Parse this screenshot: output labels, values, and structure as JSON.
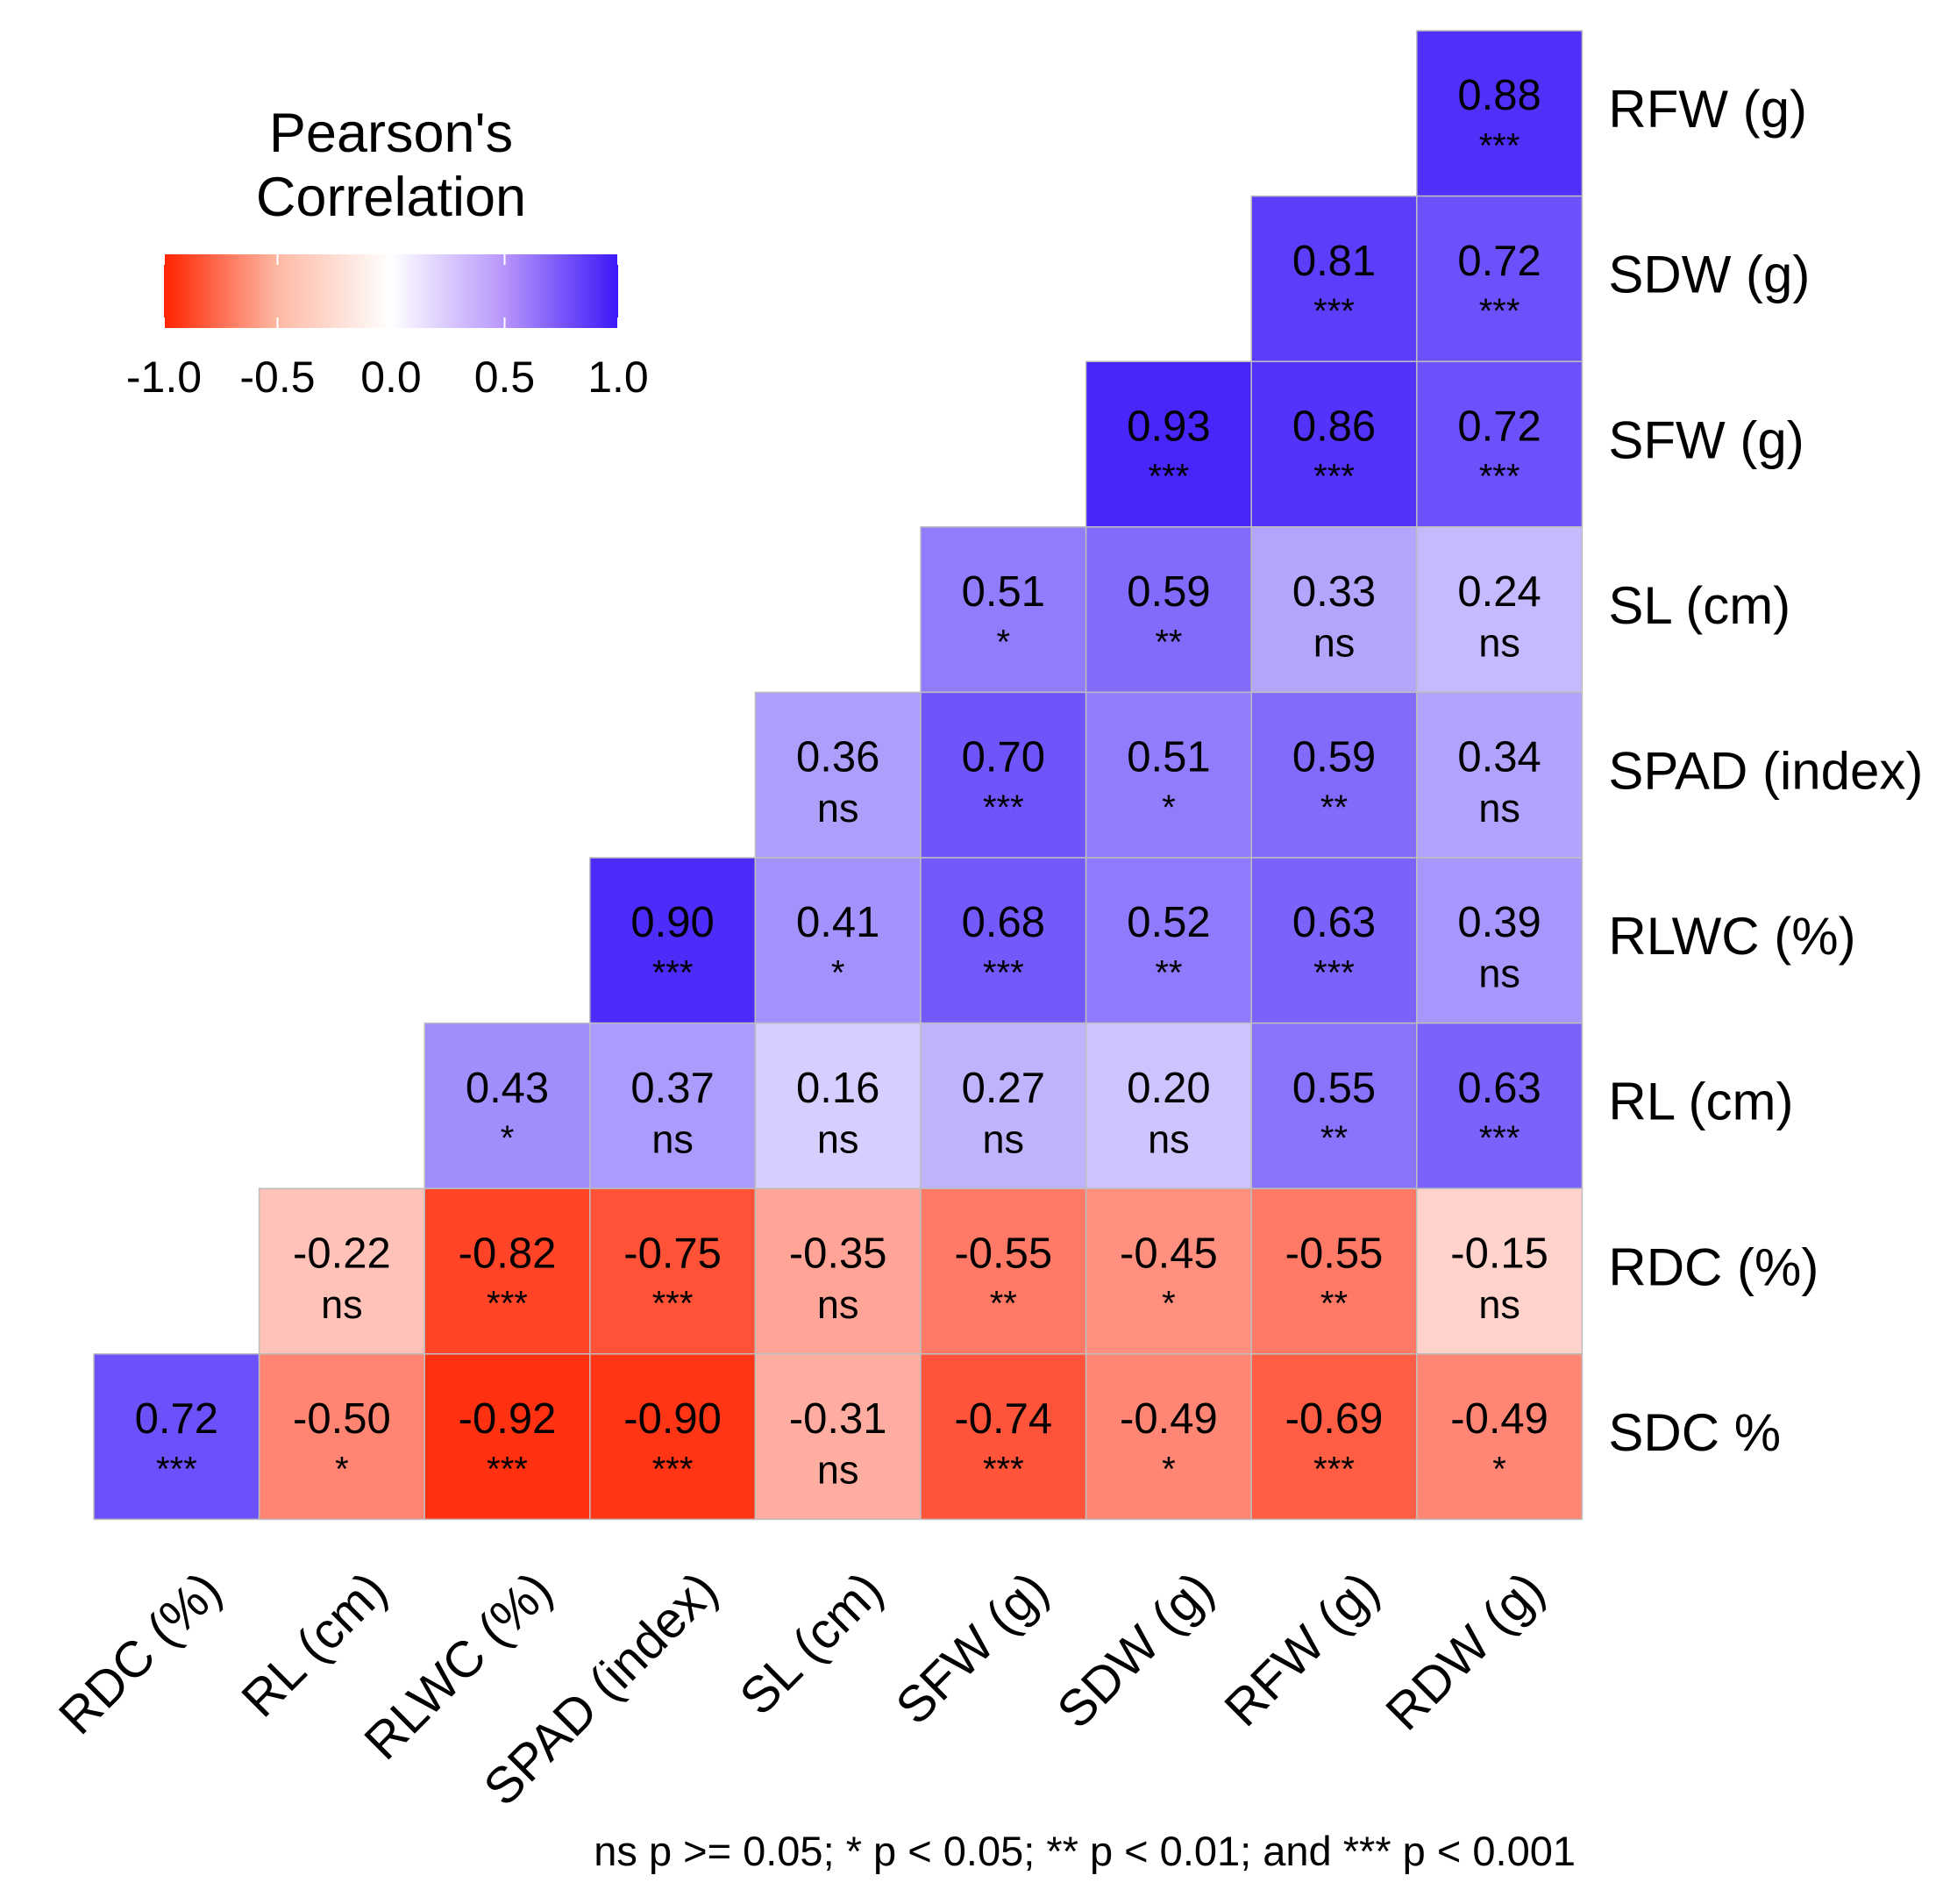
{
  "chart_data": {
    "type": "heatmap",
    "title": "",
    "legend": {
      "title_lines": [
        "Pearson's",
        "Correlation"
      ],
      "ticks": [
        "-1.0",
        "-0.5",
        "0.0",
        "0.5",
        "1.0"
      ],
      "range": [
        -1.0,
        1.0
      ],
      "low_color": "#ff2200",
      "mid_color": "#ffffff",
      "high_color": "#3c17f8",
      "placement": "top-left"
    },
    "row_labels": [
      "RFW (g)",
      "SDW (g)",
      "SFW (g)",
      "SL (cm)",
      "SPAD (index)",
      "RLWC (%)",
      "RL (cm)",
      "RDC (%)",
      "SDC %"
    ],
    "col_labels": [
      "RDC (%)",
      "RL (cm)",
      "RLWC (%)",
      "SPAD (index)",
      "SL (cm)",
      "SFW (g)",
      "SDW (g)",
      "RFW (g)",
      "RDW (g)"
    ],
    "matrix": [
      [
        null,
        null,
        null,
        null,
        null,
        null,
        null,
        null,
        {
          "v": "0.88",
          "s": "***"
        }
      ],
      [
        null,
        null,
        null,
        null,
        null,
        null,
        null,
        {
          "v": "0.81",
          "s": "***"
        },
        {
          "v": "0.72",
          "s": "***"
        }
      ],
      [
        null,
        null,
        null,
        null,
        null,
        null,
        {
          "v": "0.93",
          "s": "***"
        },
        {
          "v": "0.86",
          "s": "***"
        },
        {
          "v": "0.72",
          "s": "***"
        }
      ],
      [
        null,
        null,
        null,
        null,
        null,
        {
          "v": "0.51",
          "s": "*"
        },
        {
          "v": "0.59",
          "s": "**"
        },
        {
          "v": "0.33",
          "s": "ns"
        },
        {
          "v": "0.24",
          "s": "ns"
        }
      ],
      [
        null,
        null,
        null,
        null,
        {
          "v": "0.36",
          "s": "ns"
        },
        {
          "v": "0.70",
          "s": "***"
        },
        {
          "v": "0.51",
          "s": "*"
        },
        {
          "v": "0.59",
          "s": "**"
        },
        {
          "v": "0.34",
          "s": "ns"
        }
      ],
      [
        null,
        null,
        null,
        {
          "v": "0.90",
          "s": "***"
        },
        {
          "v": "0.41",
          "s": "*"
        },
        {
          "v": "0.68",
          "s": "***"
        },
        {
          "v": "0.52",
          "s": "**"
        },
        {
          "v": "0.63",
          "s": "***"
        },
        {
          "v": "0.39",
          "s": "ns"
        }
      ],
      [
        null,
        null,
        {
          "v": "0.43",
          "s": "*"
        },
        {
          "v": "0.37",
          "s": "ns"
        },
        {
          "v": "0.16",
          "s": "ns"
        },
        {
          "v": "0.27",
          "s": "ns"
        },
        {
          "v": "0.20",
          "s": "ns"
        },
        {
          "v": "0.55",
          "s": "**"
        },
        {
          "v": "0.63",
          "s": "***"
        }
      ],
      [
        null,
        {
          "v": "-0.22",
          "s": "ns"
        },
        {
          "v": "-0.82",
          "s": "***"
        },
        {
          "v": "-0.75",
          "s": "***"
        },
        {
          "v": "-0.35",
          "s": "ns"
        },
        {
          "v": "-0.55",
          "s": "**"
        },
        {
          "v": "-0.45",
          "s": "*"
        },
        {
          "v": "-0.55",
          "s": "**"
        },
        {
          "v": "-0.15",
          "s": "ns"
        }
      ],
      [
        {
          "v": "0.72",
          "s": "***"
        },
        {
          "v": "-0.50",
          "s": "*"
        },
        {
          "v": "-0.92",
          "s": "***"
        },
        {
          "v": "-0.90",
          "s": "***"
        },
        {
          "v": "-0.31",
          "s": "ns"
        },
        {
          "v": "-0.74",
          "s": "***"
        },
        {
          "v": "-0.49",
          "s": "*"
        },
        {
          "v": "-0.69",
          "s": "***"
        },
        {
          "v": "-0.49",
          "s": "*"
        }
      ]
    ],
    "footnote": "ns p >= 0.05; * p < 0.05; ** p < 0.01; and *** p < 0.001"
  }
}
